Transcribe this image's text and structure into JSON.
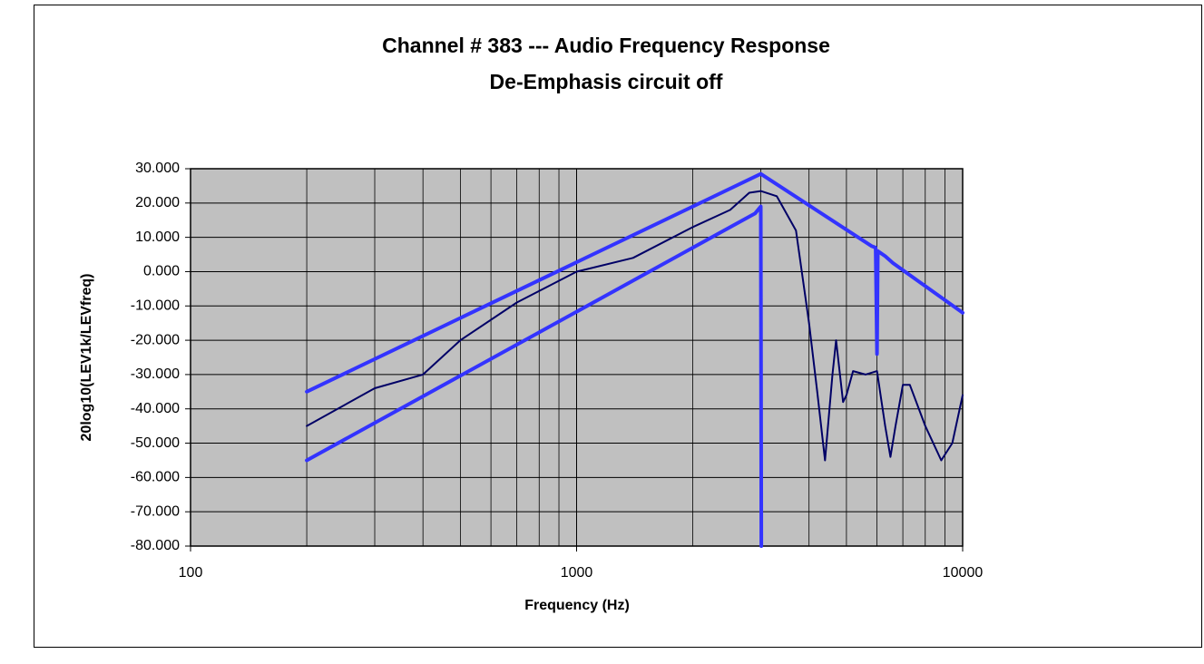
{
  "chart_data": {
    "type": "line",
    "title": "Channel # 383 --- Audio Frequency Response",
    "subtitle": "De-Emphasis circuit off",
    "x_label": "Frequency (Hz)",
    "y_label": "20log10(LEV1k/LEVfreq)",
    "xscale": "log",
    "minor_grid": true,
    "grid": true,
    "xlim": [
      100,
      10000
    ],
    "xticks": [
      100,
      1000,
      10000
    ],
    "ylim": [
      -80,
      30
    ],
    "yticks": [
      {
        "value": 30,
        "label": "30.000"
      },
      {
        "value": 20,
        "label": "20.000"
      },
      {
        "value": 10,
        "label": "10.000"
      },
      {
        "value": 0,
        "label": "0.000"
      },
      {
        "value": -10,
        "label": "-10.000"
      },
      {
        "value": -20,
        "label": "-20.000"
      },
      {
        "value": -30,
        "label": "-30.000"
      },
      {
        "value": -40,
        "label": "-40.000"
      },
      {
        "value": -50,
        "label": "-50.000"
      },
      {
        "value": -60,
        "label": "-60.000"
      },
      {
        "value": -70,
        "label": "-70.000"
      },
      {
        "value": -80,
        "label": "-80.000"
      }
    ],
    "series": [
      {
        "color": "#3333ff",
        "width": 4,
        "x": [
          200,
          3000,
          5800,
          5950,
          6000,
          6030,
          6300,
          6600,
          10000
        ],
        "values": [
          -35,
          28.5,
          7.5,
          7,
          -24,
          6,
          4.5,
          2.5,
          -12
        ]
      },
      {
        "color": "#3333ff",
        "width": 4,
        "x": [
          200,
          2900,
          3000,
          3010
        ],
        "values": [
          -55,
          17,
          19,
          -80
        ]
      },
      {
        "color": "#000066",
        "width": 2,
        "x": [
          200,
          300,
          400,
          500,
          700,
          1000,
          1400,
          2000,
          2500,
          2800,
          3000,
          3300,
          3700,
          4000,
          4200,
          4400,
          4600,
          4700,
          4900,
          5000,
          5200,
          5600,
          6000,
          6300,
          6500,
          6700,
          7000,
          7300,
          8000,
          8800,
          9400,
          10000
        ],
        "values": [
          -45,
          -34,
          -30,
          -20,
          -9,
          0,
          4,
          13,
          18,
          23,
          23.5,
          22,
          12,
          -15,
          -35,
          -55,
          -30,
          -20,
          -38,
          -36,
          -29,
          -30,
          -29,
          -45,
          -54,
          -45,
          -33,
          -33,
          -45,
          -55,
          -50,
          -36
        ]
      }
    ]
  }
}
